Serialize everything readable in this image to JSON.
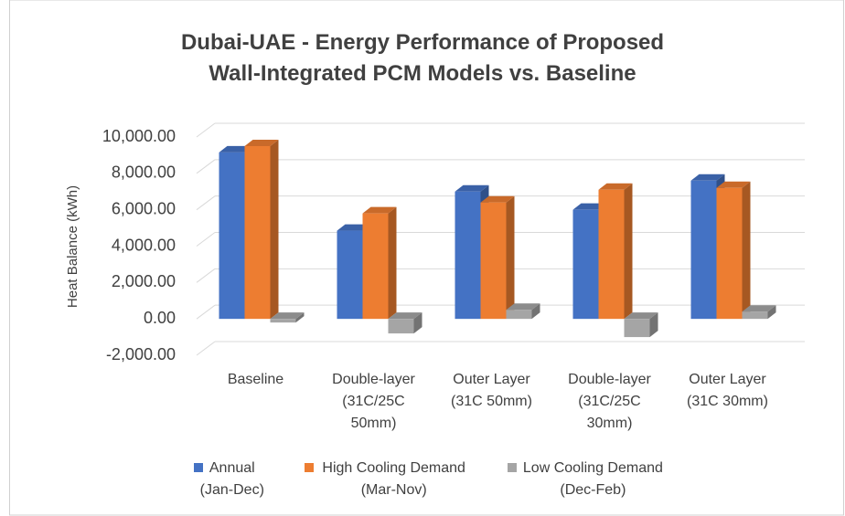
{
  "chart_data": {
    "type": "bar3d",
    "title": "Dubai-UAE - Energy Performance of Proposed Wall-Integrated PCM Models vs. Baseline",
    "y_label": "Heat Balance (kWh)",
    "categories": [
      "Baseline",
      "Double-layer (31C/25C 50mm)",
      "Outer Layer (31C 50mm)",
      "Double-layer (31C/25C 30mm)",
      "Outer Layer (31C 30mm)"
    ],
    "series": [
      {
        "name": "Annual (Jan-Dec)",
        "color": "#4472c4",
        "values": [
          9150,
          4850,
          7000,
          6000,
          7600
        ]
      },
      {
        "name": "High Cooling Demand (Mar-Nov)",
        "color": "#ed7d31",
        "values": [
          9500,
          5800,
          6400,
          7100,
          7200
        ]
      },
      {
        "name": "Low Cooling Demand (Dec-Feb)",
        "color": "#a5a5a5",
        "values": [
          -200,
          -800,
          500,
          -1000,
          400
        ]
      }
    ],
    "ylim": [
      -2000,
      10000
    ],
    "yticks": [
      {
        "value": -2000,
        "label": "-2,000.00"
      },
      {
        "value": 0,
        "label": "0.00"
      },
      {
        "value": 2000,
        "label": "2,000.00"
      },
      {
        "value": 4000,
        "label": "4,000.00"
      },
      {
        "value": 6000,
        "label": "6,000.00"
      },
      {
        "value": 8000,
        "label": "8,000.00"
      },
      {
        "value": 10000,
        "label": "10,000.00"
      }
    ],
    "grid": true,
    "legend": "bottom"
  }
}
